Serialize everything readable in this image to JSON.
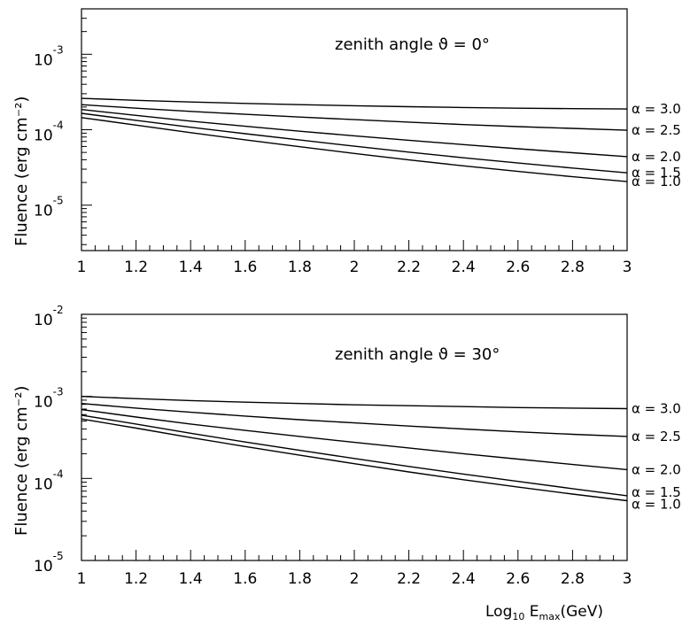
{
  "chart_data": [
    {
      "type": "line",
      "title": "zenith angle ϑ = 0°",
      "ylabel": "Fluence (erg cm⁻²)",
      "xlabel": "",
      "xlim": [
        1,
        3
      ],
      "ylim": [
        2.5e-06,
        0.004
      ],
      "yscale": "log",
      "x_tick_labels": [
        "1",
        "1.2",
        "1.4",
        "1.6",
        "1.8",
        "2",
        "2.2",
        "2.4",
        "2.6",
        "2.8",
        "3"
      ],
      "y_tick_labels": [
        {
          "mantissa": "10",
          "exp": "-5",
          "value": 1e-05
        },
        {
          "mantissa": "10",
          "exp": "-4",
          "value": 0.0001
        },
        {
          "mantissa": "10",
          "exp": "-3",
          "value": 0.001
        }
      ],
      "x": [
        1,
        1.2,
        1.4,
        1.6,
        1.8,
        2,
        2.2,
        2.4,
        2.6,
        2.8,
        3
      ],
      "series": [
        {
          "name": "α = 3.0",
          "values": [
            0.00026,
            0.000245,
            0.000233,
            0.000223,
            0.000215,
            0.000208,
            0.000202,
            0.000197,
            0.000193,
            0.00019,
            0.000188
          ]
        },
        {
          "name": "α = 2.5",
          "values": [
            0.000215,
            0.000193,
            0.000175,
            0.00016,
            0.000147,
            0.000136,
            0.000126,
            0.000117,
            0.00011,
            0.000104,
            9.85e-05
          ]
        },
        {
          "name": "α = 2.0",
          "values": [
            0.000185,
            0.000155,
            0.00013,
            0.000111,
            9.55e-05,
            8.3e-05,
            7.25e-05,
            6.35e-05,
            5.6e-05,
            4.95e-05,
            4.4e-05
          ]
        },
        {
          "name": "α = 1.5",
          "values": [
            0.000165,
            0.000133,
            0.000108,
            8.85e-05,
            7.3e-05,
            6.05e-05,
            5.05e-05,
            4.25e-05,
            3.62e-05,
            3.1e-05,
            2.68e-05
          ]
        },
        {
          "name": "α = 1.0",
          "values": [
            0.000145,
            0.000115,
            9.15e-05,
            7.35e-05,
            5.95e-05,
            4.85e-05,
            3.98e-05,
            3.32e-05,
            2.8e-05,
            2.38e-05,
            2.05e-05
          ]
        }
      ],
      "curve_label_prefix": "α = ",
      "curve_label_values": [
        "3.0",
        "2.5",
        "2.0",
        "1.5",
        "1.0"
      ],
      "grid": false
    },
    {
      "type": "line",
      "title": "zenith angle ϑ = 30°",
      "ylabel": "Fluence (erg cm⁻²)",
      "xlabel": "Log₁₀ E_max(GeV)",
      "xlabel_main": "Log",
      "xlabel_sub": "10",
      "xlabel_E": " E",
      "xlabel_max": "max",
      "xlabel_unit": "(GeV)",
      "xlim": [
        1,
        3
      ],
      "ylim": [
        1e-05,
        0.01
      ],
      "yscale": "log",
      "x_tick_labels": [
        "1",
        "1.2",
        "1.4",
        "1.6",
        "1.8",
        "2",
        "2.2",
        "2.4",
        "2.6",
        "2.8",
        "3"
      ],
      "y_tick_labels": [
        {
          "mantissa": "10",
          "exp": "-5",
          "value": 1e-05
        },
        {
          "mantissa": "10",
          "exp": "-4",
          "value": 0.0001
        },
        {
          "mantissa": "10",
          "exp": "-3",
          "value": 0.001
        },
        {
          "mantissa": "10",
          "exp": "-2",
          "value": 0.01
        }
      ],
      "x": [
        1,
        1.2,
        1.4,
        1.6,
        1.8,
        2,
        2.2,
        2.4,
        2.6,
        2.8,
        3
      ],
      "series": [
        {
          "name": "α = 3.0",
          "values": [
            0.001,
            0.00094,
            0.00089,
            0.00085,
            0.00082,
            0.00079,
            0.00077,
            0.00075,
            0.00073,
            0.00072,
            0.00071
          ]
        },
        {
          "name": "α = 2.5",
          "values": [
            0.00082,
            0.00072,
            0.00064,
            0.000575,
            0.00052,
            0.000475,
            0.000435,
            0.0004,
            0.00037,
            0.000345,
            0.000325
          ]
        },
        {
          "name": "α = 2.0",
          "values": [
            0.00069,
            0.00056,
            0.00046,
            0.000385,
            0.000325,
            0.000275,
            0.000235,
            0.0002,
            0.000172,
            0.000148,
            0.000128
          ]
        },
        {
          "name": "α = 1.5",
          "values": [
            0.00059,
            0.00046,
            0.000355,
            0.000278,
            0.00022,
            0.000175,
            0.00014,
            0.000113,
            9.2e-05,
            7.5e-05,
            6.15e-05
          ]
        },
        {
          "name": "α = 1.0",
          "values": [
            0.00053,
            0.00041,
            0.000315,
            0.000245,
            0.000192,
            0.000151,
            0.00012,
            9.65e-05,
            7.85e-05,
            6.45e-05,
            5.35e-05
          ]
        }
      ],
      "curve_label_prefix": "α = ",
      "curve_label_values": [
        "3.0",
        "2.5",
        "2.0",
        "1.5",
        "1.0"
      ],
      "grid": false
    }
  ]
}
